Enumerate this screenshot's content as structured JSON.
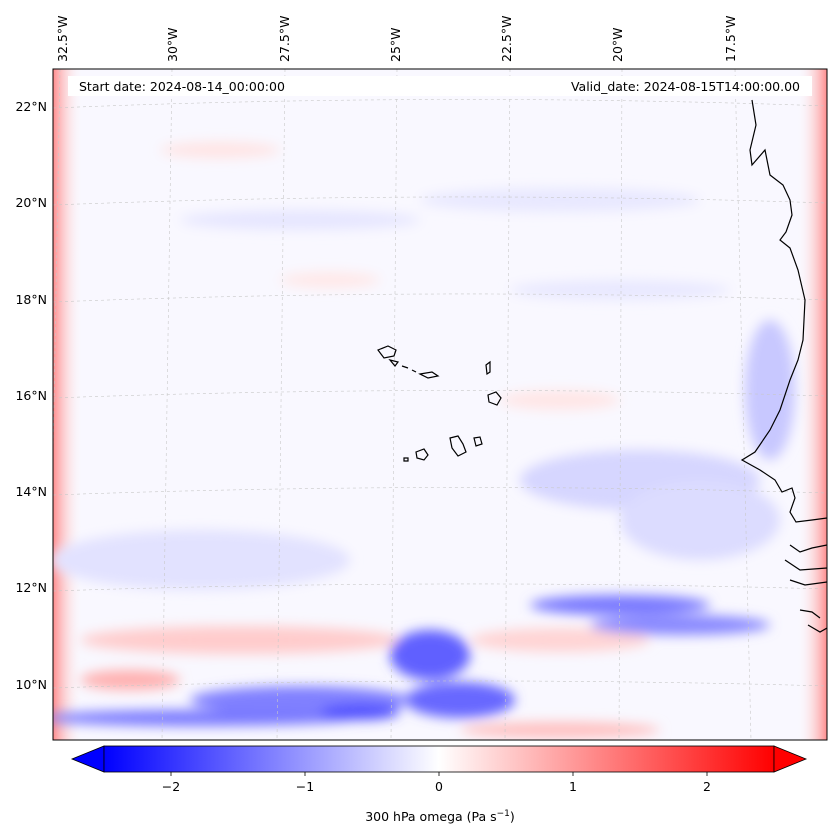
{
  "map": {
    "start_date": "Start date: 2024-08-14_00:00:00",
    "valid_date": "Valid_date: 2024-08-15T14:00:00.00",
    "lon_labels": [
      "32.5°W",
      "30°W",
      "27.5°W",
      "25°W",
      "22.5°W",
      "20°W",
      "17.5°W"
    ],
    "lat_labels": [
      "22°N",
      "20°N",
      "18°N",
      "16°N",
      "14°N",
      "12°N",
      "10°N"
    ],
    "colorbar": {
      "ticks": [
        "−2",
        "−1",
        "0",
        "1",
        "2"
      ],
      "label": "300 hPa omega (Pa s",
      "label_sup": "−1",
      "label_end": ")",
      "min_color": "#0000ff",
      "mid_color": "#ffffff",
      "max_color": "#ff0000"
    }
  }
}
